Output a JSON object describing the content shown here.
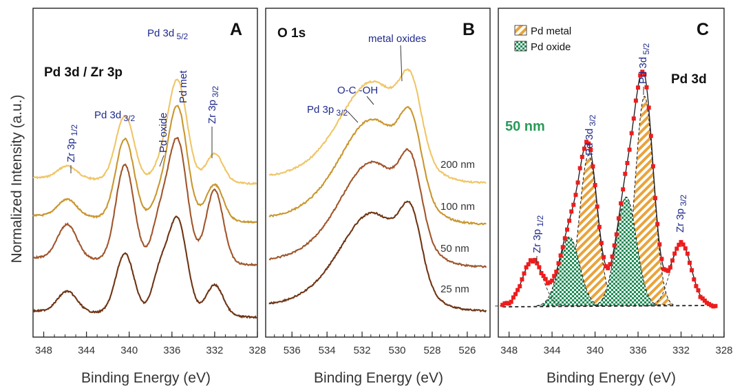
{
  "ylabel": "Normalized Intensity (a.u.)",
  "chart_data": [
    {
      "panel": "A",
      "type": "line",
      "title": "Pd 3d / Zr 3p",
      "xlabel": "Binding Energy (eV)",
      "xlim": [
        349,
        328
      ],
      "xticks": [
        "348",
        "344",
        "340",
        "336",
        "332",
        "328"
      ],
      "x_reversed": true,
      "annotations": [
        {
          "label": "Zr 3p",
          "sub": "1/2",
          "x": 345.8
        },
        {
          "label": "Pd 3d",
          "sub": "3/2",
          "x": 340.4
        },
        {
          "label": "Pd oxide",
          "x": 337.2
        },
        {
          "label": "Pd met",
          "x": 335.5
        },
        {
          "label": "Pd 3d",
          "sub": "5/2",
          "x": 335.5
        },
        {
          "label": "Zr 3p",
          "sub": "3/2",
          "x": 332.0
        }
      ],
      "series": [
        {
          "name": "200 nm",
          "color": "#f0c566",
          "offset": 3,
          "peaks": [
            [
              345.8,
              0.12
            ],
            [
              340.4,
              0.62
            ],
            [
              337.2,
              0.1
            ],
            [
              335.5,
              0.98
            ],
            [
              332.0,
              0.28
            ]
          ]
        },
        {
          "name": "100 nm",
          "color": "#c9962e",
          "offset": 2,
          "peaks": [
            [
              345.8,
              0.15
            ],
            [
              340.4,
              0.7
            ],
            [
              337.2,
              0.14
            ],
            [
              335.5,
              1.0
            ],
            [
              332.0,
              0.32
            ]
          ]
        },
        {
          "name": "50 nm",
          "color": "#a0552b",
          "offset": 1,
          "peaks": [
            [
              345.8,
              0.28
            ],
            [
              340.4,
              0.78
            ],
            [
              337.2,
              0.3
            ],
            [
              335.5,
              1.0
            ],
            [
              332.0,
              0.6
            ]
          ]
        },
        {
          "name": "25 nm",
          "color": "#6e3414",
          "offset": 0,
          "peaks": [
            [
              345.8,
              0.2
            ],
            [
              340.4,
              0.58
            ],
            [
              337.2,
              0.35
            ],
            [
              335.5,
              0.93
            ],
            [
              332.0,
              0.3
            ]
          ]
        }
      ]
    },
    {
      "panel": "B",
      "type": "line",
      "title": "O 1s",
      "xlabel": "Binding Energy (eV)",
      "xlim": [
        537.5,
        524.7
      ],
      "xticks": [
        "536",
        "534",
        "532",
        "530",
        "528",
        "526"
      ],
      "x_reversed": true,
      "annotations": [
        {
          "label": "Pd 3p",
          "sub": "3/2",
          "x": 532.0
        },
        {
          "label": "O-C -OH",
          "x": 531.0
        },
        {
          "label": "metal oxides",
          "x": 529.3
        }
      ],
      "series": [
        {
          "name": "200 nm",
          "color": "#f0c566",
          "offset": 3
        },
        {
          "name": "100 nm",
          "color": "#c9962e",
          "offset": 2
        },
        {
          "name": "50 nm",
          "color": "#a0552b",
          "offset": 1
        },
        {
          "name": "25 nm",
          "color": "#6e3414",
          "offset": 0
        }
      ],
      "series_labels": [
        "200 nm",
        "100 nm",
        "50 nm",
        "25 nm"
      ]
    },
    {
      "panel": "C",
      "type": "line",
      "title": "Pd 3d",
      "sample": "50 nm",
      "xlabel": "Binding Energy (eV)",
      "xlim": [
        349,
        328
      ],
      "xticks": [
        "348",
        "344",
        "340",
        "336",
        "332",
        "328"
      ],
      "x_reversed": true,
      "legend": [
        {
          "name": "Pd metal",
          "pattern": "hatch-orange"
        },
        {
          "name": "Pd oxide",
          "pattern": "check-green"
        }
      ],
      "legend_position": "top-left",
      "annotations": [
        {
          "label": "Zr 3p",
          "sub": "1/2",
          "x": 345.8
        },
        {
          "label": "Pd 3d",
          "sub": "3/2",
          "x": 340.6
        },
        {
          "label": "Pd 3d",
          "sub": "5/2",
          "x": 335.4
        },
        {
          "label": "Zr 3p",
          "sub": "3/2",
          "x": 332.0
        }
      ],
      "components": [
        {
          "name": "Pd metal",
          "center": 340.6,
          "height": 0.72
        },
        {
          "name": "Pd metal",
          "center": 335.4,
          "height": 1.0
        },
        {
          "name": "Pd oxide",
          "center": 342.4,
          "height": 0.33
        },
        {
          "name": "Pd oxide",
          "center": 337.1,
          "height": 0.52
        },
        {
          "name": "Zr 3p",
          "center": 345.8,
          "height": 0.22
        },
        {
          "name": "Zr 3p",
          "center": 332.0,
          "height": 0.3
        }
      ]
    }
  ]
}
